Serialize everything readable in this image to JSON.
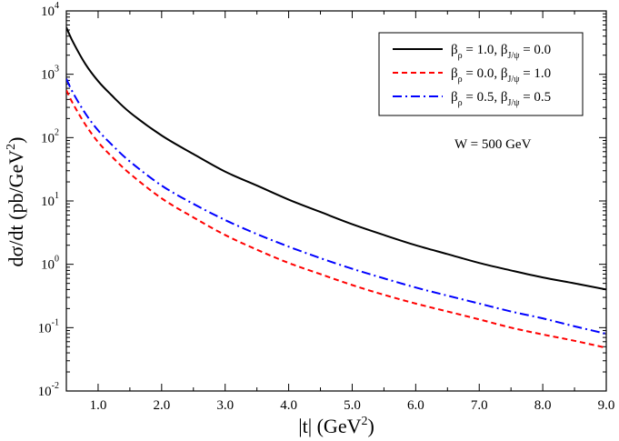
{
  "chart_data": {
    "type": "line",
    "title": "",
    "xlabel": {
      "main": "|t| (GeV",
      "sup": "2",
      "close": ")"
    },
    "ylabel": {
      "main": "dσ/dt (pb/GeV",
      "sup": "2",
      "close": ")"
    },
    "xlim": [
      0.5,
      9.0
    ],
    "ylim": [
      0.01,
      10000
    ],
    "yscale": "log",
    "x_ticks": [
      1.0,
      2.0,
      3.0,
      4.0,
      5.0,
      6.0,
      7.0,
      8.0,
      9.0
    ],
    "x_tick_labels": [
      "1.0",
      "2.0",
      "3.0",
      "4.0",
      "5.0",
      "6.0",
      "7.0",
      "8.0",
      "9.0"
    ],
    "y_ticks": [
      {
        "value": 0.01,
        "base": "10",
        "exp": "-2"
      },
      {
        "value": 0.1,
        "base": "10",
        "exp": "-1"
      },
      {
        "value": 1,
        "base": "10",
        "exp": "0"
      },
      {
        "value": 10,
        "base": "10",
        "exp": "1"
      },
      {
        "value": 100,
        "base": "10",
        "exp": "2"
      },
      {
        "value": 1000,
        "base": "10",
        "exp": "3"
      },
      {
        "value": 10000,
        "base": "10",
        "exp": "4"
      }
    ],
    "grid": false,
    "legend_position": "top-right",
    "annotation": "W = 500 GeV",
    "series": [
      {
        "name": "βρ = 1.0, βJ/ψ = 0.0",
        "legend": {
          "b1": "β",
          "s1": "ρ",
          "m1": " = 1.0, ",
          "b2": "β",
          "s2": "J/ψ",
          "m2": " = 0.0"
        },
        "color": "#000000",
        "dash": "solid",
        "x": [
          0.5,
          0.6,
          0.8,
          1.0,
          1.2,
          1.5,
          2.0,
          2.5,
          3.0,
          3.5,
          4.0,
          4.5,
          5.0,
          5.5,
          6.0,
          6.5,
          7.0,
          7.5,
          8.0,
          8.5,
          9.0
        ],
        "y": [
          5500,
          3300,
          1450,
          780,
          480,
          250,
          108,
          55,
          29,
          17.5,
          10.5,
          6.7,
          4.3,
          2.9,
          2.0,
          1.45,
          1.05,
          0.8,
          0.62,
          0.5,
          0.4
        ]
      },
      {
        "name": "βρ = 0.0, βJ/ψ = 1.0",
        "legend": {
          "b1": "β",
          "s1": "ρ",
          "m1": " = 0.0, ",
          "b2": "β",
          "s2": "J/ψ",
          "m2": " = 1.0"
        },
        "color": "#ff0000",
        "dash": "dashed",
        "x": [
          0.5,
          0.6,
          0.8,
          1.0,
          1.2,
          1.5,
          2.0,
          2.5,
          3.0,
          3.5,
          4.0,
          4.5,
          5.0,
          5.5,
          6.0,
          6.5,
          7.0,
          7.5,
          8.0,
          8.5,
          9.0
        ],
        "y": [
          560,
          350,
          160,
          85,
          52,
          27,
          11,
          5.5,
          2.9,
          1.7,
          1.05,
          0.7,
          0.47,
          0.33,
          0.24,
          0.18,
          0.135,
          0.1,
          0.078,
          0.062,
          0.048
        ]
      },
      {
        "name": "βρ = 0.5, βJ/ψ = 0.5",
        "legend": {
          "b1": "β",
          "s1": "ρ",
          "m1": " = 0.5, ",
          "b2": "β",
          "s2": "J/ψ",
          "m2": " = 0.5"
        },
        "color": "#0000ff",
        "dash": "dashdot",
        "x": [
          0.5,
          0.6,
          0.8,
          1.0,
          1.2,
          1.5,
          2.0,
          2.5,
          3.0,
          3.5,
          4.0,
          4.5,
          5.0,
          5.5,
          6.0,
          6.5,
          7.0,
          7.5,
          8.0,
          8.5,
          9.0
        ],
        "y": [
          850,
          520,
          240,
          130,
          80,
          42,
          17.5,
          9,
          5,
          3,
          1.9,
          1.25,
          0.85,
          0.6,
          0.43,
          0.32,
          0.24,
          0.18,
          0.14,
          0.105,
          0.08
        ]
      }
    ]
  }
}
